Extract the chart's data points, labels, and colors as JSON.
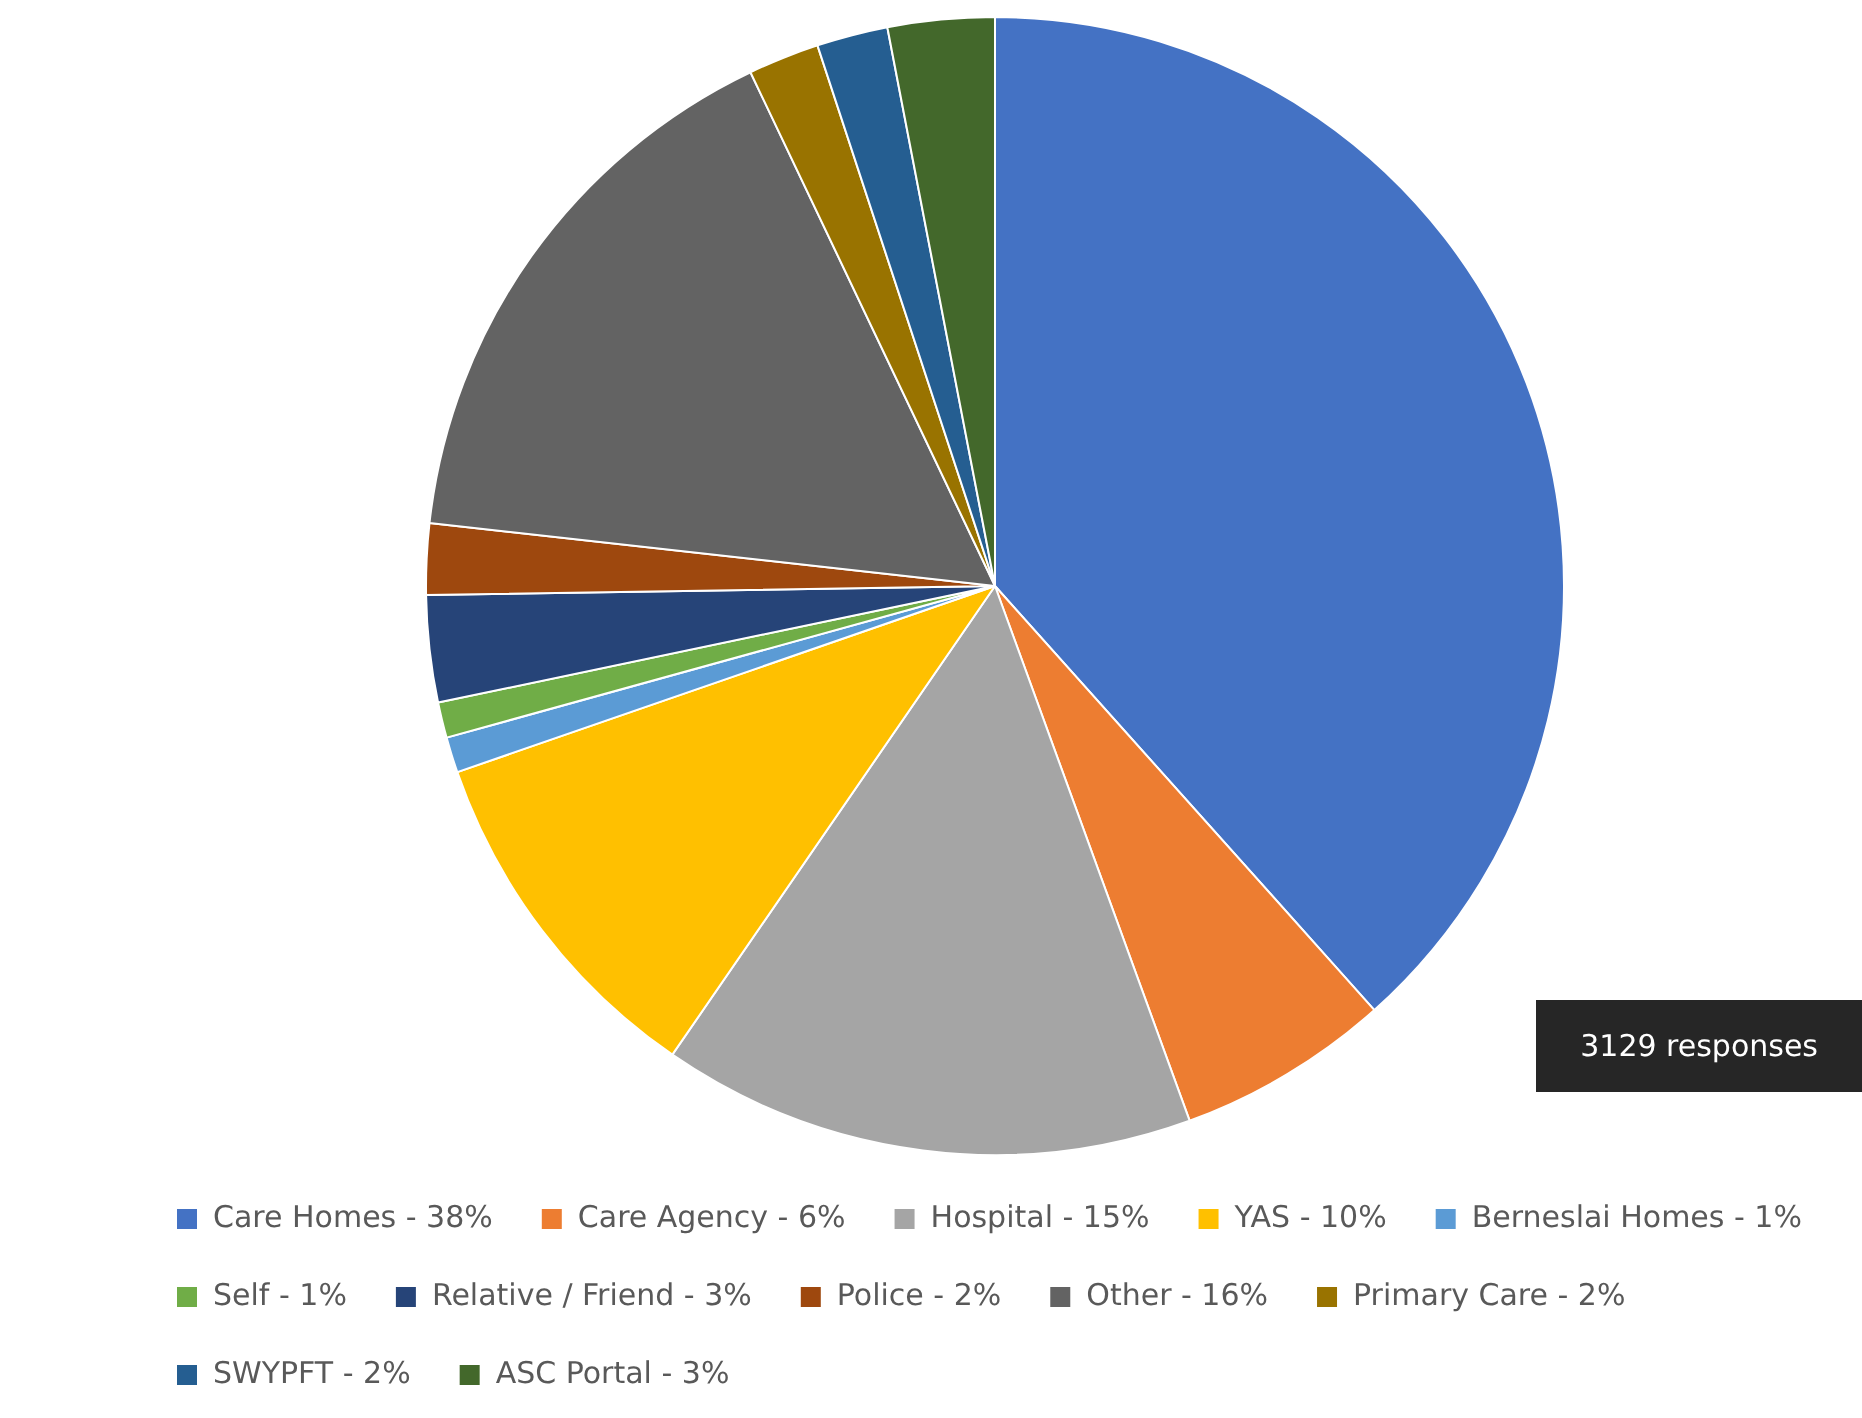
{
  "chart_data": {
    "type": "pie",
    "categories": [
      "Care Homes - 38%",
      "Care Agency - 6%",
      "Hospital - 15%",
      "YAS - 10%",
      "Berneslai Homes - 1%",
      "Self - 1%",
      "Relative / Friend - 3%",
      "Police - 2%",
      "Other - 16%",
      "Primary Care - 2%",
      "SWYPFT - 2%",
      "ASC Portal - 3%"
    ],
    "values": [
      38,
      6,
      15,
      10,
      1,
      1,
      3,
      2,
      16,
      2,
      2,
      3
    ],
    "colors": [
      "#4472c4",
      "#ed7d31",
      "#a5a5a5",
      "#ffc000",
      "#5b9bd5",
      "#70ad47",
      "#264478",
      "#9e480e",
      "#636363",
      "#997300",
      "#255e91",
      "#43682b"
    ],
    "legend": "bottom",
    "annotations": [
      "3129 responses"
    ]
  }
}
